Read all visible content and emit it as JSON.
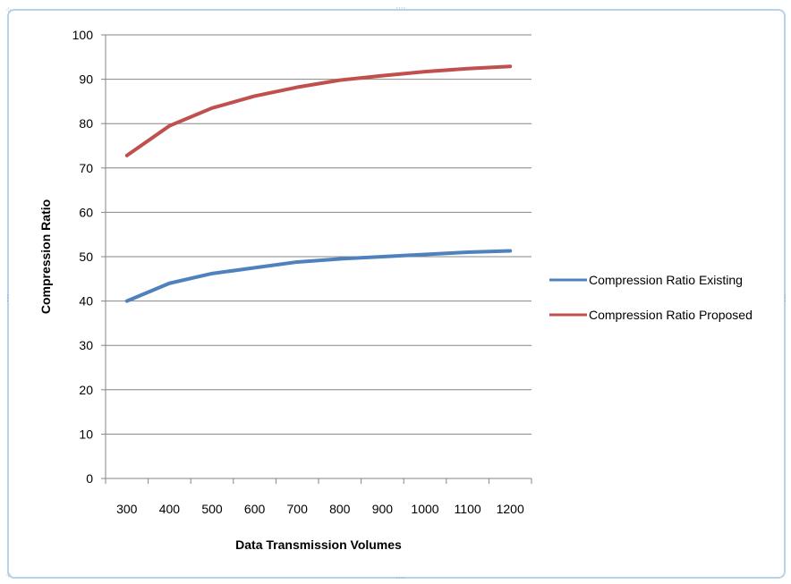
{
  "chart_data": {
    "type": "line",
    "title": "",
    "xlabel": "Data Transmission  Volumes",
    "ylabel": "Compression Ratio",
    "categories": [
      "300",
      "400",
      "500",
      "600",
      "700",
      "800",
      "900",
      "1000",
      "1100",
      "1200"
    ],
    "ylim": [
      0,
      100
    ],
    "y_ticks": [
      0,
      10,
      20,
      30,
      40,
      50,
      60,
      70,
      80,
      90,
      100
    ],
    "grid": "horizontal",
    "legend_position": "right",
    "series": [
      {
        "name": "Compression Ratio Existing",
        "color": "#4f81bd",
        "values": [
          40,
          44,
          46.2,
          47.5,
          48.8,
          49.5,
          50,
          50.5,
          51,
          51.3
        ]
      },
      {
        "name": "Compression Ratio Proposed",
        "color": "#c0504d",
        "values": [
          72.8,
          79.5,
          83.5,
          86.2,
          88.2,
          89.8,
          90.8,
          91.7,
          92.4,
          92.9
        ]
      }
    ]
  }
}
